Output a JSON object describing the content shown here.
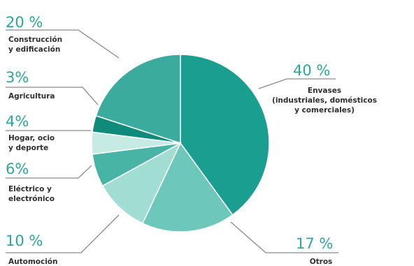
{
  "colors": {
    "percent_text": "#2aa898",
    "label_text": "#2e2e2e",
    "leader": "#8a8a8a"
  },
  "chart_data": {
    "type": "pie",
    "title": "",
    "categories": [
      "Envases (industriales, domésticos y comerciales)",
      "Otros",
      "Automoción",
      "Eléctrico y electrónico",
      "Hogar, ocio y deporte",
      "Agricultura",
      "Construcción y edificación"
    ],
    "values": [
      40,
      17,
      10,
      6,
      4,
      3,
      20
    ],
    "slices": [
      {
        "label_lines": [
          "Envases",
          "(industriales, domésticos",
          "y comerciales)"
        ],
        "percent_label": "40 %",
        "value": 40,
        "color": "#199e8f"
      },
      {
        "label_lines": [
          "Otros"
        ],
        "percent_label": "17 %",
        "value": 17,
        "color": "#6dc8bb"
      },
      {
        "label_lines": [
          "Automoción"
        ],
        "percent_label": "10 %",
        "value": 10,
        "color": "#a2ddd4"
      },
      {
        "label_lines": [
          "Eléctrico y",
          "electrónico"
        ],
        "percent_label": "6%",
        "value": 6,
        "color": "#48b4a6"
      },
      {
        "label_lines": [
          "Hogar, ocio",
          "y deporte"
        ],
        "percent_label": "4%",
        "value": 4,
        "color": "#c6ebe5"
      },
      {
        "label_lines": [
          "Agricultura"
        ],
        "percent_label": "3%",
        "value": 3,
        "color": "#0f8a7b"
      },
      {
        "label_lines": [
          "Construcción",
          "y edificación"
        ],
        "percent_label": "20 %",
        "value": 20,
        "color": "#3aab9c"
      }
    ]
  }
}
